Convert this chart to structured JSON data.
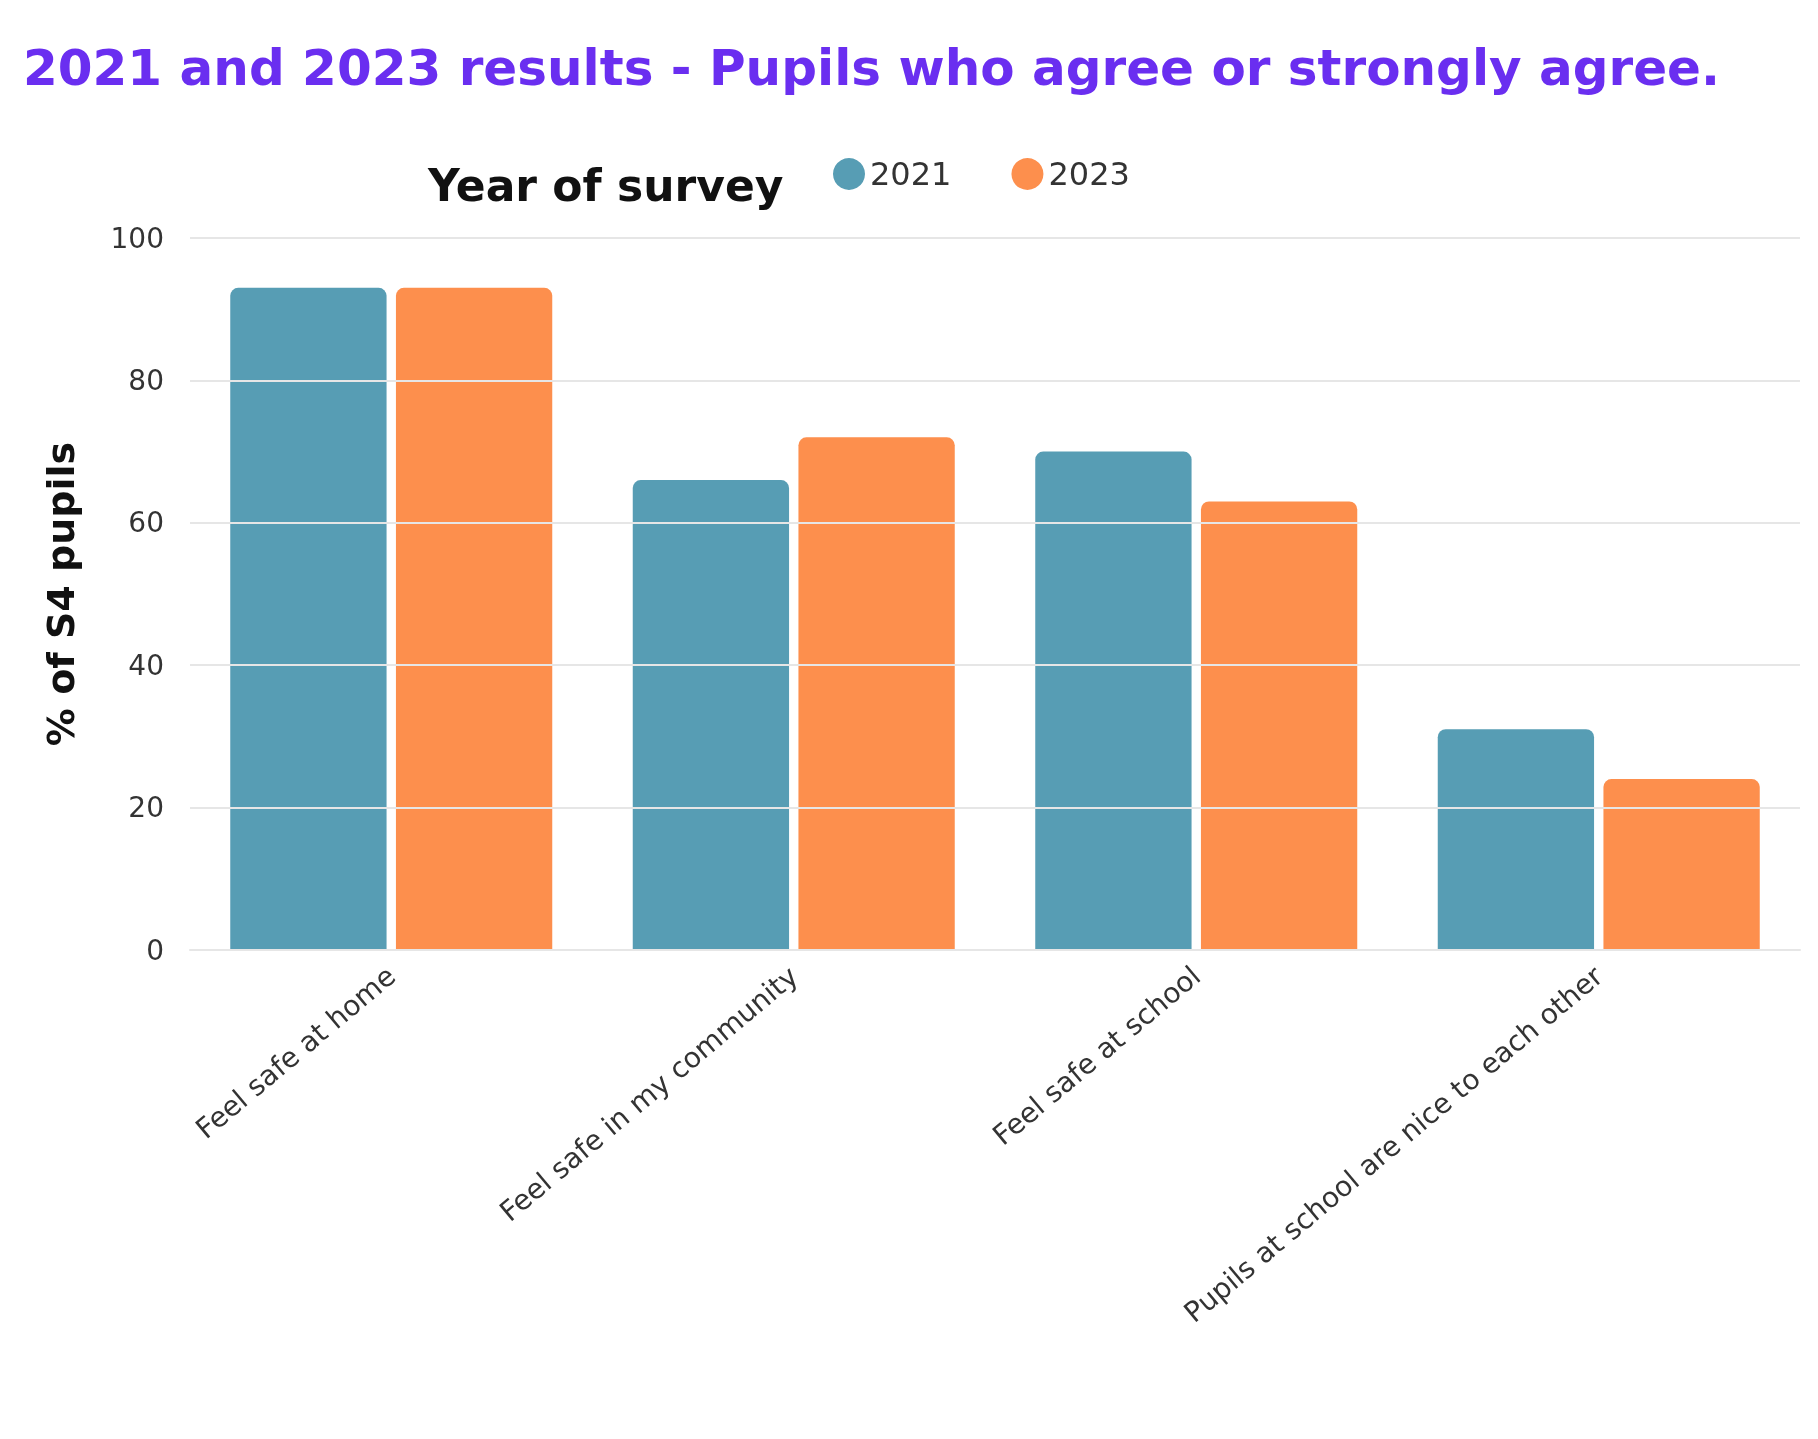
{
  "chart_data": {
    "type": "bar",
    "title": "2021 and 2023 results - Pupils who agree or strongly agree.",
    "ylabel": "% of S4 pupils",
    "legend_title": "Year of survey",
    "categories": [
      "Feel safe at home",
      "Feel safe in my community",
      "Feel safe at school",
      "Pupils at school are nice to each other"
    ],
    "series": [
      {
        "name": "2021",
        "color": "#579db4",
        "values": [
          93,
          66,
          70,
          31
        ]
      },
      {
        "name": "2023",
        "color": "#fd8f4d",
        "values": [
          93,
          72,
          63,
          24
        ]
      }
    ],
    "ylim": [
      0,
      100
    ],
    "yticks": [
      0,
      20,
      40,
      60,
      80,
      100
    ],
    "grid": "y",
    "legend": "top"
  }
}
